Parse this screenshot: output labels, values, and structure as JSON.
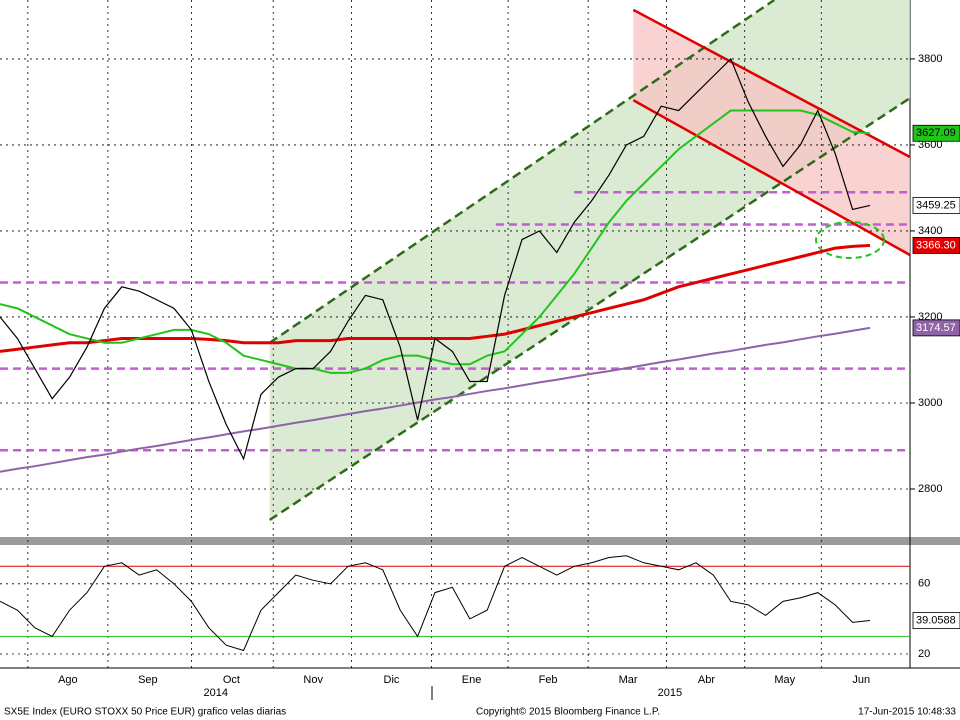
{
  "chart_data": {
    "type": "line",
    "title": "SX5E Index (EURO STOXX 50 Price EUR) grafico velas diarias",
    "copyright": "Copyright© 2015 Bloomberg Finance L.P.",
    "timestamp": "17-Jun-2015 10:48:33",
    "x": [
      0,
      1,
      2,
      3,
      4,
      5,
      6,
      7,
      8,
      9,
      10,
      11,
      12,
      13,
      14,
      15,
      16,
      17,
      18,
      19,
      20,
      21,
      22,
      23,
      24,
      25,
      26,
      27,
      28,
      29,
      30,
      31,
      32,
      33,
      34,
      35,
      36,
      37,
      38,
      39,
      40,
      41,
      42,
      43,
      44,
      45,
      46,
      47,
      48,
      49,
      50
    ],
    "xlim": [
      0,
      52.3
    ],
    "xticks": [
      {
        "value": 3.9,
        "label": "Ago"
      },
      {
        "value": 8.5,
        "label": "Sep"
      },
      {
        "value": 13.3,
        "label": "Oct"
      },
      {
        "value": 18,
        "label": "Nov"
      },
      {
        "value": 22.5,
        "label": "Dic"
      },
      {
        "value": 27.1,
        "label": "Ene"
      },
      {
        "value": 31.5,
        "label": "Feb"
      },
      {
        "value": 36.1,
        "label": "Mar"
      },
      {
        "value": 40.6,
        "label": "Abr"
      },
      {
        "value": 45.1,
        "label": "May"
      },
      {
        "value": 49.5,
        "label": "Jun"
      }
    ],
    "years": [
      {
        "value": 12.4,
        "label": "2014"
      },
      {
        "value": 38.5,
        "label": "2015"
      }
    ],
    "ylim": [
      2693,
      3937
    ],
    "yticks": [
      2800,
      3000,
      3200,
      3400,
      3600,
      3800
    ],
    "grid": true,
    "series": [
      {
        "color": "#000000",
        "end_label": "3459.25",
        "values": [
          3200,
          3150,
          3080,
          3010,
          3060,
          3130,
          3220,
          3270,
          3260,
          3240,
          3220,
          3170,
          3050,
          2950,
          2870,
          3020,
          3060,
          3080,
          3080,
          3120,
          3190,
          3250,
          3240,
          3130,
          2960,
          3150,
          3120,
          3050,
          3050,
          3250,
          3380,
          3400,
          3350,
          3420,
          3470,
          3530,
          3600,
          3620,
          3690,
          3680,
          3720,
          3760,
          3800,
          3700,
          3620,
          3550,
          3600,
          3680,
          3580,
          3450,
          3459.25
        ]
      },
      {
        "color": "#22c41c",
        "end_label": "3627.09",
        "values": [
          3230,
          3220,
          3200,
          3180,
          3160,
          3150,
          3140,
          3140,
          3150,
          3160,
          3170,
          3170,
          3160,
          3140,
          3110,
          3100,
          3090,
          3080,
          3080,
          3070,
          3070,
          3080,
          3100,
          3110,
          3110,
          3100,
          3090,
          3090,
          3110,
          3120,
          3160,
          3200,
          3250,
          3300,
          3360,
          3420,
          3470,
          3510,
          3550,
          3590,
          3620,
          3650,
          3680,
          3680,
          3680,
          3680,
          3680,
          3670,
          3650,
          3630,
          3627.09
        ]
      },
      {
        "color": "#e00000",
        "end_label": "3366.30",
        "values": [
          3120,
          3125,
          3130,
          3135,
          3140,
          3140,
          3145,
          3150,
          3150,
          3150,
          3150,
          3150,
          3148,
          3145,
          3140,
          3140,
          3140,
          3145,
          3145,
          3145,
          3150,
          3150,
          3150,
          3150,
          3150,
          3150,
          3150,
          3150,
          3155,
          3160,
          3170,
          3180,
          3190,
          3200,
          3210,
          3220,
          3230,
          3240,
          3255,
          3270,
          3280,
          3290,
          3300,
          3310,
          3320,
          3330,
          3340,
          3350,
          3360,
          3364,
          3366.3
        ]
      },
      {
        "color": "#8e63a8",
        "end_label": "3174.57",
        "values": [
          2840,
          2847,
          2853,
          2860,
          2867,
          2874,
          2880,
          2887,
          2894,
          2900,
          2907,
          2914,
          2920,
          2927,
          2934,
          2940,
          2947,
          2954,
          2960,
          2967,
          2974,
          2981,
          2987,
          2994,
          3001,
          3008,
          3014,
          3021,
          3028,
          3034,
          3041,
          3048,
          3054,
          3061,
          3068,
          3074,
          3081,
          3088,
          3095,
          3101,
          3108,
          3115,
          3121,
          3128,
          3135,
          3141,
          3148,
          3155,
          3161,
          3168,
          3174.57
        ]
      }
    ],
    "hlines": [
      {
        "value": 3280,
        "from": 0,
        "color": "#c060d0"
      },
      {
        "value": 3080,
        "from": 0,
        "color": "#c060d0"
      },
      {
        "value": 2890,
        "from": 0,
        "color": "#c060d0"
      },
      {
        "value": 3490,
        "from": 33,
        "color": "#c060d0"
      },
      {
        "value": 3415,
        "from": 28.5,
        "color": "#c060d0"
      }
    ],
    "shaded_regions": [
      {
        "color": "#cfe3c4",
        "points": [
          [
            15.5,
            3140
          ],
          [
            44.5,
            3937
          ],
          [
            52.3,
            3937
          ],
          [
            52.3,
            3709
          ],
          [
            15.5,
            2728
          ]
        ]
      },
      {
        "color": "#f7c3c3",
        "points": [
          [
            36.4,
            3914
          ],
          [
            52.3,
            3572
          ],
          [
            52.3,
            3344
          ],
          [
            36.4,
            3704
          ]
        ]
      }
    ],
    "trendlines": [
      {
        "color": "#2e6b1a",
        "dashed": true,
        "points": [
          [
            15.5,
            3140
          ],
          [
            44.5,
            3937
          ]
        ]
      },
      {
        "color": "#2e6b1a",
        "dashed": true,
        "points": [
          [
            15.5,
            2728
          ],
          [
            52.3,
            3709
          ]
        ]
      },
      {
        "color": "#e00000",
        "dashed": false,
        "points": [
          [
            36.4,
            3914
          ],
          [
            52.3,
            3572
          ]
        ]
      },
      {
        "color": "#e00000",
        "dashed": false,
        "points": [
          [
            36.4,
            3704
          ],
          [
            52.3,
            3344
          ]
        ]
      }
    ],
    "rsi": {
      "color": "#000000",
      "end_label": "39.0588",
      "ylim": [
        12,
        81
      ],
      "yticks": [
        20,
        60
      ],
      "upper": 70,
      "lower": 30,
      "values": [
        50,
        45,
        35,
        30,
        45,
        55,
        70,
        72,
        65,
        68,
        60,
        50,
        35,
        25,
        22,
        45,
        55,
        65,
        62,
        60,
        70,
        72,
        68,
        45,
        30,
        55,
        58,
        40,
        45,
        70,
        75,
        70,
        65,
        70,
        72,
        75,
        76,
        72,
        70,
        68,
        72,
        65,
        50,
        48,
        42,
        50,
        52,
        55,
        48,
        38,
        39.0588
      ]
    }
  }
}
